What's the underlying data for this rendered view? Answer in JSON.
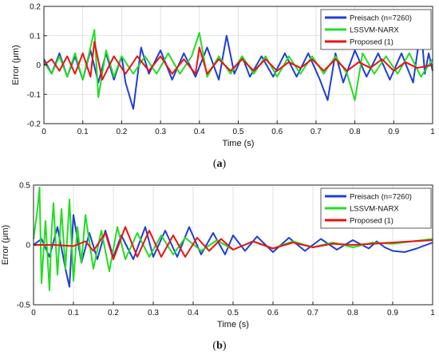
{
  "chart_data": [
    {
      "type": "line",
      "caption": "a",
      "xlabel": "Time (s)",
      "ylabel": "Error (μm)",
      "xlim": [
        0,
        1
      ],
      "ylim": [
        -0.2,
        0.2
      ],
      "xticks": [
        0,
        0.1,
        0.2,
        0.3,
        0.4,
        0.5,
        0.6,
        0.7,
        0.8,
        0.9,
        1
      ],
      "yticks": [
        -0.2,
        -0.1,
        0,
        0.1,
        0.2
      ],
      "xtick_labels": [
        "0",
        "0.1",
        "0.2",
        "0.3",
        "0.4",
        "0.5",
        "0.6",
        "0.7",
        "0.8",
        "0.9",
        "1"
      ],
      "ytick_labels": [
        "-0.2",
        "-0.1",
        "0",
        "0.1",
        "0.2"
      ],
      "grid": true,
      "legend_position": "top-right",
      "series": [
        {
          "name": "Preisach (n=7260)",
          "color": "#1f3fd6",
          "x": [
            0,
            0.02,
            0.04,
            0.06,
            0.08,
            0.1,
            0.12,
            0.14,
            0.16,
            0.18,
            0.2,
            0.21,
            0.23,
            0.25,
            0.27,
            0.3,
            0.33,
            0.36,
            0.39,
            0.42,
            0.45,
            0.47,
            0.49,
            0.51,
            0.53,
            0.56,
            0.59,
            0.62,
            0.65,
            0.68,
            0.71,
            0.73,
            0.75,
            0.77,
            0.8,
            0.83,
            0.86,
            0.89,
            0.92,
            0.95,
            0.97,
            0.98,
            0.99,
            1
          ],
          "values": [
            0.02,
            -0.03,
            0.04,
            -0.04,
            0.03,
            -0.05,
            0.05,
            -0.06,
            0.04,
            -0.05,
            0.03,
            -0.06,
            -0.15,
            0.06,
            -0.03,
            0.05,
            -0.05,
            0.04,
            -0.04,
            0.06,
            -0.05,
            0.1,
            -0.03,
            0.03,
            -0.04,
            0.03,
            -0.04,
            0.04,
            -0.04,
            0.04,
            -0.05,
            -0.12,
            0.04,
            -0.06,
            0.05,
            -0.04,
            0.04,
            -0.05,
            0.04,
            -0.06,
            0.13,
            -0.03,
            0.04,
            -0.02
          ]
        },
        {
          "name": "LSSVM-NARX",
          "color": "#22dd22",
          "x": [
            0,
            0.02,
            0.04,
            0.06,
            0.08,
            0.1,
            0.12,
            0.13,
            0.14,
            0.16,
            0.18,
            0.2,
            0.23,
            0.26,
            0.29,
            0.32,
            0.35,
            0.38,
            0.4,
            0.42,
            0.45,
            0.48,
            0.51,
            0.54,
            0.57,
            0.6,
            0.63,
            0.66,
            0.69,
            0.72,
            0.75,
            0.78,
            0.8,
            0.82,
            0.85,
            0.88,
            0.91,
            0.94,
            0.97,
            1
          ],
          "values": [
            0.01,
            -0.03,
            0.03,
            -0.04,
            0.04,
            -0.05,
            0.06,
            0.12,
            -0.11,
            0.05,
            -0.04,
            0.03,
            -0.03,
            0.03,
            -0.03,
            0.04,
            -0.03,
            0.03,
            0.11,
            -0.04,
            0.03,
            -0.03,
            0.03,
            -0.03,
            0.03,
            -0.04,
            0.03,
            -0.03,
            0.03,
            -0.03,
            0.03,
            -0.03,
            -0.12,
            0.04,
            -0.03,
            0.03,
            -0.03,
            0.04,
            -0.04,
            0.02
          ]
        },
        {
          "name": "Proposed (1)",
          "color": "#ee1111",
          "x": [
            0,
            0.02,
            0.04,
            0.06,
            0.08,
            0.1,
            0.12,
            0.13,
            0.15,
            0.18,
            0.21,
            0.24,
            0.27,
            0.3,
            0.33,
            0.36,
            0.39,
            0.4,
            0.42,
            0.45,
            0.48,
            0.51,
            0.54,
            0.57,
            0.6,
            0.63,
            0.66,
            0.69,
            0.72,
            0.75,
            0.78,
            0.81,
            0.84,
            0.87,
            0.9,
            0.93,
            0.96,
            1
          ],
          "values": [
            0,
            0.02,
            -0.02,
            0.03,
            -0.03,
            0.04,
            -0.04,
            0.08,
            -0.05,
            0.03,
            -0.03,
            0.03,
            -0.02,
            0.03,
            -0.03,
            0.02,
            -0.03,
            0.06,
            -0.03,
            0.02,
            -0.02,
            0.02,
            -0.02,
            0.02,
            -0.02,
            0.01,
            -0.01,
            0.02,
            -0.02,
            0.02,
            -0.02,
            0.01,
            -0.01,
            0.02,
            -0.02,
            0.01,
            -0.01,
            0
          ]
        }
      ]
    },
    {
      "type": "line",
      "caption": "b",
      "xlabel": "Time (s)",
      "ylabel": "Error (μm)",
      "xlim": [
        0,
        1
      ],
      "ylim": [
        -0.5,
        0.5
      ],
      "xticks": [
        0,
        0.1,
        0.2,
        0.3,
        0.4,
        0.5,
        0.6,
        0.7,
        0.8,
        0.9,
        1
      ],
      "yticks": [
        -0.5,
        0,
        0.5
      ],
      "xtick_labels": [
        "0",
        "0.1",
        "0.2",
        "0.3",
        "0.4",
        "0.5",
        "0.6",
        "0.7",
        "0.8",
        "0.9",
        "1"
      ],
      "ytick_labels": [
        "-0.5",
        "0",
        "0.5"
      ],
      "grid": true,
      "legend_position": "top-right",
      "series": [
        {
          "name": "Preisach (n=7260)",
          "color": "#1f3fd6",
          "x": [
            0,
            0.02,
            0.04,
            0.06,
            0.08,
            0.09,
            0.1,
            0.12,
            0.14,
            0.16,
            0.18,
            0.2,
            0.22,
            0.25,
            0.28,
            0.3,
            0.33,
            0.36,
            0.39,
            0.42,
            0.45,
            0.48,
            0.5,
            0.53,
            0.56,
            0.6,
            0.64,
            0.68,
            0.72,
            0.76,
            0.8,
            0.84,
            0.86,
            0.88,
            0.9,
            0.93,
            0.96,
            1
          ],
          "values": [
            0,
            0.05,
            -0.1,
            0.15,
            -0.2,
            -0.35,
            0.25,
            -0.15,
            0.1,
            -0.12,
            0.12,
            -0.1,
            0.08,
            -0.12,
            0.15,
            -0.1,
            0.12,
            -0.1,
            0.15,
            -0.08,
            0.1,
            -0.08,
            0.08,
            -0.05,
            0.07,
            -0.06,
            0.06,
            -0.05,
            0.05,
            -0.04,
            0.04,
            -0.03,
            0.03,
            -0.02,
            -0.05,
            -0.06,
            -0.03,
            0.02
          ]
        },
        {
          "name": "LSSVM-NARX",
          "color": "#22dd22",
          "x": [
            0,
            0.01,
            0.015,
            0.02,
            0.03,
            0.04,
            0.045,
            0.05,
            0.06,
            0.07,
            0.08,
            0.09,
            0.1,
            0.11,
            0.12,
            0.13,
            0.15,
            0.17,
            0.19,
            0.21,
            0.23,
            0.26,
            0.29,
            0.32,
            0.35,
            0.38,
            0.42,
            0.46,
            0.5,
            0.55,
            0.6,
            0.65,
            0.7,
            0.75,
            0.8,
            0.85,
            0.9,
            0.95,
            1
          ],
          "values": [
            0.05,
            0.3,
            0.48,
            -0.32,
            0.2,
            -0.38,
            0.1,
            0.35,
            -0.25,
            0.3,
            -0.2,
            0.38,
            -0.3,
            0.15,
            -0.15,
            0.25,
            -0.2,
            0.12,
            -0.22,
            0.15,
            -0.12,
            0.1,
            -0.1,
            0.08,
            -0.08,
            0.06,
            -0.05,
            0.04,
            -0.04,
            0.03,
            -0.03,
            0.03,
            -0.02,
            0.02,
            -0.02,
            0.02,
            0.01,
            0.03,
            0.05
          ]
        },
        {
          "name": "Proposed (1)",
          "color": "#ee1111",
          "x": [
            0,
            0.05,
            0.1,
            0.13,
            0.15,
            0.18,
            0.2,
            0.23,
            0.26,
            0.29,
            0.32,
            0.35,
            0.38,
            0.41,
            0.44,
            0.47,
            0.5,
            0.55,
            0.6,
            0.65,
            0.7,
            0.75,
            0.8,
            0.85,
            0.9,
            0.95,
            1
          ],
          "values": [
            0,
            0,
            -0.01,
            0.03,
            -0.05,
            0.1,
            -0.12,
            0.15,
            -0.1,
            0.12,
            -0.1,
            0.08,
            -0.1,
            0.06,
            -0.05,
            0.05,
            -0.04,
            0.03,
            -0.03,
            0.02,
            -0.02,
            0.01,
            0,
            0.01,
            0.02,
            0.03,
            0.04
          ]
        }
      ]
    }
  ]
}
